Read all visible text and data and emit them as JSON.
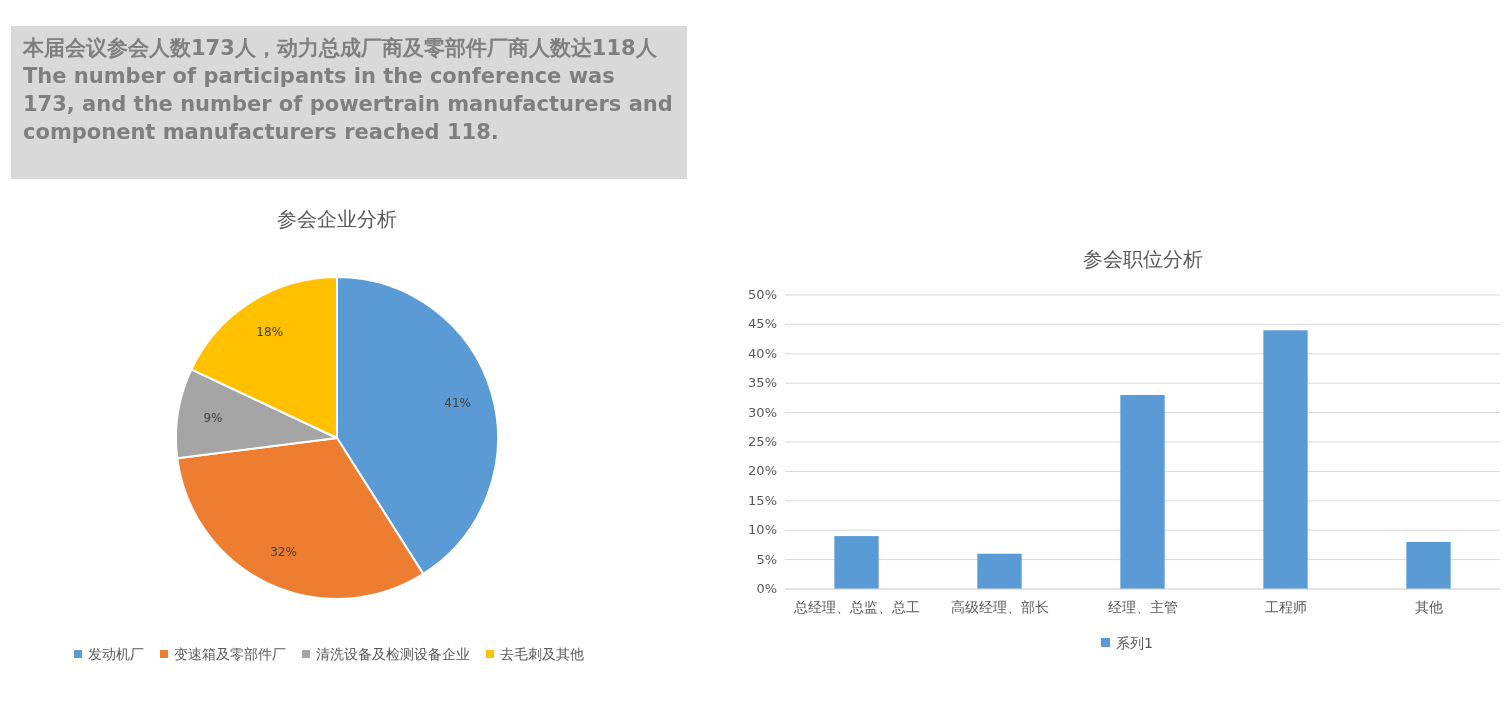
{
  "chart_data": [
    {
      "type": "other",
      "title": "本届会议参会人数173人，动力总成厂商及零部件厂商人数达118人",
      "subtitle": "The number of participants in the conference was 173, and the number of powertrain manufacturers and component manufacturers reached 118."
    },
    {
      "type": "pie",
      "title": "参会企业分析",
      "categories": [
        "发动机厂",
        "变速箱及零部件厂",
        "清洗设备及检测设备企业",
        "去毛刺及其他"
      ],
      "values": [
        41,
        32,
        9,
        18
      ],
      "colors": [
        "#5b9bd5",
        "#ed7d31",
        "#a5a5a5",
        "#ffc000"
      ],
      "value_labels": [
        "41%",
        "32%",
        "9%",
        "18%"
      ],
      "legend": "bottom"
    },
    {
      "type": "bar",
      "title": "参会职位分析",
      "categories": [
        "总经理、总监、总工",
        "高级经理、部长",
        "经理、主管",
        "工程师",
        "其他"
      ],
      "series": [
        {
          "name": "系列1",
          "color": "#5b9bd5",
          "values": [
            9,
            6,
            33,
            44,
            8
          ]
        }
      ],
      "ylim": [
        0,
        50
      ],
      "yticks": [
        {
          "value": 0,
          "label": "0%"
        },
        {
          "value": 5,
          "label": "5%"
        },
        {
          "value": 10,
          "label": "10%"
        },
        {
          "value": 15,
          "label": "15%"
        },
        {
          "value": 20,
          "label": "20%"
        },
        {
          "value": 25,
          "label": "25%"
        },
        {
          "value": 30,
          "label": "30%"
        },
        {
          "value": 35,
          "label": "35%"
        },
        {
          "value": 40,
          "label": "40%"
        },
        {
          "value": 45,
          "label": "45%"
        },
        {
          "value": 50,
          "label": "50%"
        }
      ],
      "grid": "y",
      "legend": "bottom"
    }
  ]
}
